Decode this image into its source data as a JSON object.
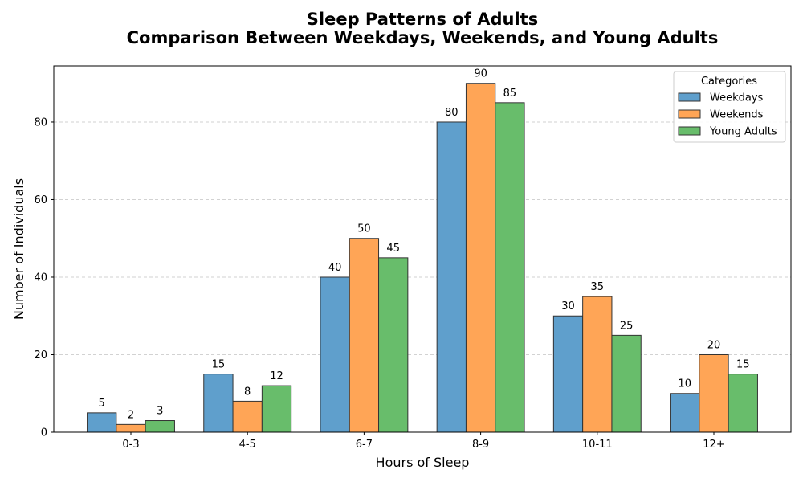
{
  "chart_data": {
    "type": "bar",
    "title": "Sleep Patterns of Adults",
    "subtitle": "Comparison Between Weekdays, Weekends, and Young Adults",
    "xlabel": "Hours of Sleep",
    "ylabel": "Number of Individuals",
    "categories": [
      "0-3",
      "4-5",
      "6-7",
      "8-9",
      "10-11",
      "12+"
    ],
    "series": [
      {
        "name": "Weekdays",
        "values": [
          5,
          15,
          40,
          80,
          30,
          10
        ],
        "color": "#5f9fcc"
      },
      {
        "name": "Weekends",
        "values": [
          2,
          8,
          50,
          90,
          35,
          20
        ],
        "color": "#ffa556"
      },
      {
        "name": "Young Adults",
        "values": [
          3,
          12,
          45,
          85,
          25,
          15
        ],
        "color": "#68bd6b"
      }
    ],
    "ylim": [
      0,
      94.5
    ],
    "yticks": [
      0,
      20,
      40,
      60,
      80
    ],
    "grid": "horizontal dashed",
    "legend": {
      "title": "Categories",
      "placement": "top-right"
    }
  }
}
